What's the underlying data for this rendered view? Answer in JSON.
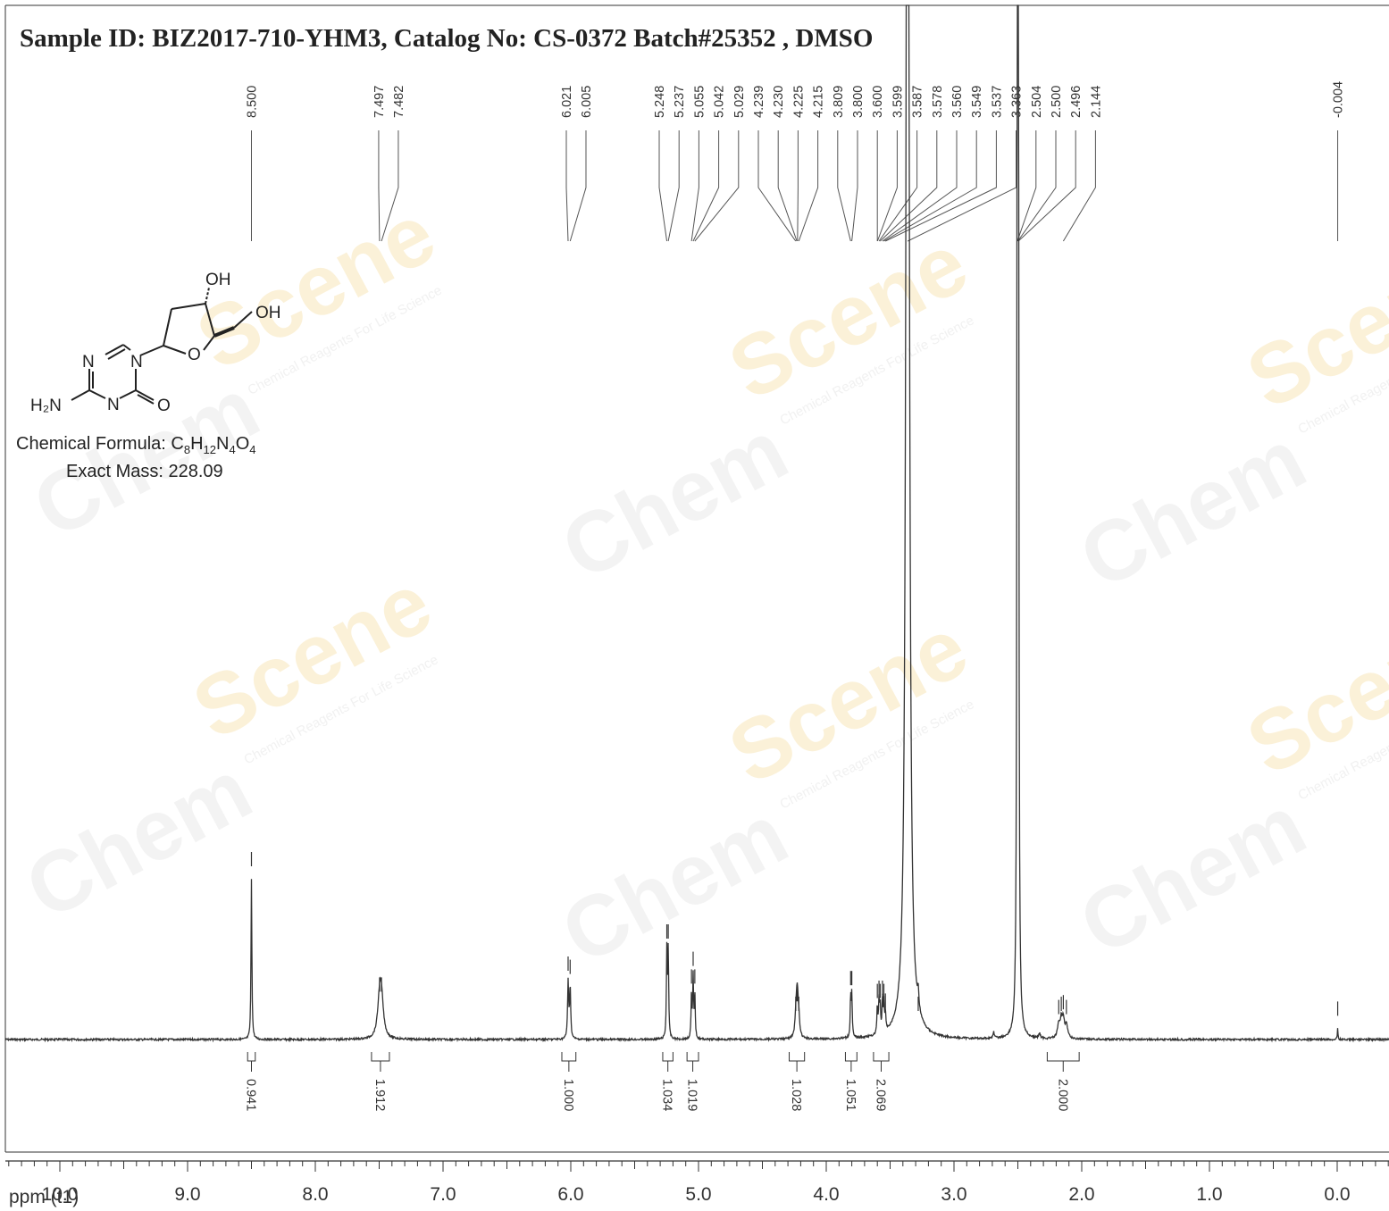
{
  "title": "Sample ID: BIZ2017-710-YHM3, Catalog No: CS-0372 Batch#25352 , DMSO",
  "compound": {
    "atoms": {
      "oh_ring": "OH",
      "oh_chain": "OH",
      "n1": "N",
      "n3": "N",
      "n5": "N",
      "o_ring": "O",
      "o_carbonyl": "O",
      "h2n": "H₂N"
    },
    "formula_label": "Chemical Formula: ",
    "formula_parts": [
      "C",
      "8",
      "H",
      "12",
      "N",
      "4",
      "O",
      "4"
    ],
    "exact_mass": "Exact Mass: 228.09"
  },
  "watermark": {
    "brand_grey": "Chem",
    "brand_gold": "Scene",
    "slogan": "Chemical Reagents For Life Science"
  },
  "chart_data": {
    "type": "line",
    "xlabel": "ppm (t1)",
    "xlim": [
      10.0,
      -0.4
    ],
    "x_reversed": true,
    "x_ticks": [
      "10.0",
      "9.0",
      "8.0",
      "7.0",
      "6.0",
      "5.0",
      "4.0",
      "3.0",
      "2.0",
      "1.0",
      "0.0"
    ],
    "x_tick_values": [
      10,
      9,
      8,
      7,
      6,
      5,
      4,
      3,
      2,
      1,
      0
    ],
    "grid": false,
    "peak_labels": [
      {
        "ppm": 8.5,
        "text": "8.500"
      },
      {
        "ppm": 7.497,
        "text": "7.497"
      },
      {
        "ppm": 7.482,
        "text": "7.482"
      },
      {
        "ppm": 6.021,
        "text": "6.021"
      },
      {
        "ppm": 6.005,
        "text": "6.005"
      },
      {
        "ppm": 5.248,
        "text": "5.248"
      },
      {
        "ppm": 5.237,
        "text": "5.237"
      },
      {
        "ppm": 5.055,
        "text": "5.055"
      },
      {
        "ppm": 5.042,
        "text": "5.042"
      },
      {
        "ppm": 5.029,
        "text": "5.029"
      },
      {
        "ppm": 4.239,
        "text": "4.239"
      },
      {
        "ppm": 4.23,
        "text": "4.230"
      },
      {
        "ppm": 4.225,
        "text": "4.225"
      },
      {
        "ppm": 4.215,
        "text": "4.215"
      },
      {
        "ppm": 3.809,
        "text": "3.809"
      },
      {
        "ppm": 3.8,
        "text": "3.800"
      },
      {
        "ppm": 3.6,
        "text": "3.600"
      },
      {
        "ppm": 3.599,
        "text": "3.599"
      },
      {
        "ppm": 3.587,
        "text": "3.587"
      },
      {
        "ppm": 3.578,
        "text": "3.578"
      },
      {
        "ppm": 3.56,
        "text": "3.560"
      },
      {
        "ppm": 3.549,
        "text": "3.549"
      },
      {
        "ppm": 3.537,
        "text": "3.537"
      },
      {
        "ppm": 3.363,
        "text": "3.363"
      },
      {
        "ppm": 2.504,
        "text": "2.504"
      },
      {
        "ppm": 2.5,
        "text": "2.500"
      },
      {
        "ppm": 2.496,
        "text": "2.496"
      },
      {
        "ppm": 2.144,
        "text": "2.144"
      },
      {
        "ppm": -0.004,
        "text": "-0.004"
      }
    ],
    "integrals": [
      {
        "from": 8.53,
        "to": 8.47,
        "value": "0.941"
      },
      {
        "from": 7.56,
        "to": 7.42,
        "value": "1.912"
      },
      {
        "from": 6.07,
        "to": 5.96,
        "value": "1.000"
      },
      {
        "from": 5.28,
        "to": 5.2,
        "value": "1.034"
      },
      {
        "from": 5.09,
        "to": 5.0,
        "value": "1.019"
      },
      {
        "from": 4.29,
        "to": 4.17,
        "value": "1.028"
      },
      {
        "from": 3.85,
        "to": 3.76,
        "value": "1.051"
      },
      {
        "from": 3.63,
        "to": 3.51,
        "value": "2.069"
      },
      {
        "from": 2.27,
        "to": 2.02,
        "value": "2.000"
      }
    ],
    "spectrum_peaks": [
      {
        "ppm": 8.5,
        "height": 1.0,
        "width": 0.004
      },
      {
        "ppm": 7.497,
        "height": 0.22,
        "width": 0.018
      },
      {
        "ppm": 7.482,
        "height": 0.22,
        "width": 0.018
      },
      {
        "ppm": 6.021,
        "height": 0.35,
        "width": 0.005
      },
      {
        "ppm": 6.005,
        "height": 0.33,
        "width": 0.005
      },
      {
        "ppm": 5.248,
        "height": 0.55,
        "width": 0.004
      },
      {
        "ppm": 5.237,
        "height": 0.55,
        "width": 0.004
      },
      {
        "ppm": 5.055,
        "height": 0.27,
        "width": 0.004
      },
      {
        "ppm": 5.042,
        "height": 0.38,
        "width": 0.004
      },
      {
        "ppm": 5.029,
        "height": 0.27,
        "width": 0.004
      },
      {
        "ppm": 4.239,
        "height": 0.1,
        "width": 0.008
      },
      {
        "ppm": 4.23,
        "height": 0.16,
        "width": 0.008
      },
      {
        "ppm": 4.225,
        "height": 0.16,
        "width": 0.008
      },
      {
        "ppm": 4.215,
        "height": 0.1,
        "width": 0.008
      },
      {
        "ppm": 3.809,
        "height": 0.26,
        "width": 0.004
      },
      {
        "ppm": 3.8,
        "height": 0.26,
        "width": 0.004
      },
      {
        "ppm": 3.6,
        "height": 0.18,
        "width": 0.004
      },
      {
        "ppm": 3.587,
        "height": 0.2,
        "width": 0.004
      },
      {
        "ppm": 3.578,
        "height": 0.18,
        "width": 0.004
      },
      {
        "ppm": 3.56,
        "height": 0.2,
        "width": 0.004
      },
      {
        "ppm": 3.549,
        "height": 0.18,
        "width": 0.004
      },
      {
        "ppm": 3.537,
        "height": 0.12,
        "width": 0.004
      },
      {
        "ppm": 3.363,
        "height": 12.0,
        "width": 0.012
      },
      {
        "ppm": 3.28,
        "height": 0.1,
        "width": 0.006
      },
      {
        "ppm": 2.69,
        "height": 0.04,
        "width": 0.006
      },
      {
        "ppm": 2.504,
        "height": 6.0,
        "width": 0.003
      },
      {
        "ppm": 2.5,
        "height": 12.0,
        "width": 0.003
      },
      {
        "ppm": 2.496,
        "height": 6.0,
        "width": 0.003
      },
      {
        "ppm": 2.33,
        "height": 0.03,
        "width": 0.008
      },
      {
        "ppm": 2.18,
        "height": 0.08,
        "width": 0.012
      },
      {
        "ppm": 2.16,
        "height": 0.1,
        "width": 0.01
      },
      {
        "ppm": 2.144,
        "height": 0.11,
        "width": 0.01
      },
      {
        "ppm": 2.12,
        "height": 0.08,
        "width": 0.012
      },
      {
        "ppm": -0.004,
        "height": 0.07,
        "width": 0.003
      }
    ],
    "colors": {
      "spectrum": "#333333",
      "axis": "#333333",
      "label_lines": "#555555"
    }
  }
}
